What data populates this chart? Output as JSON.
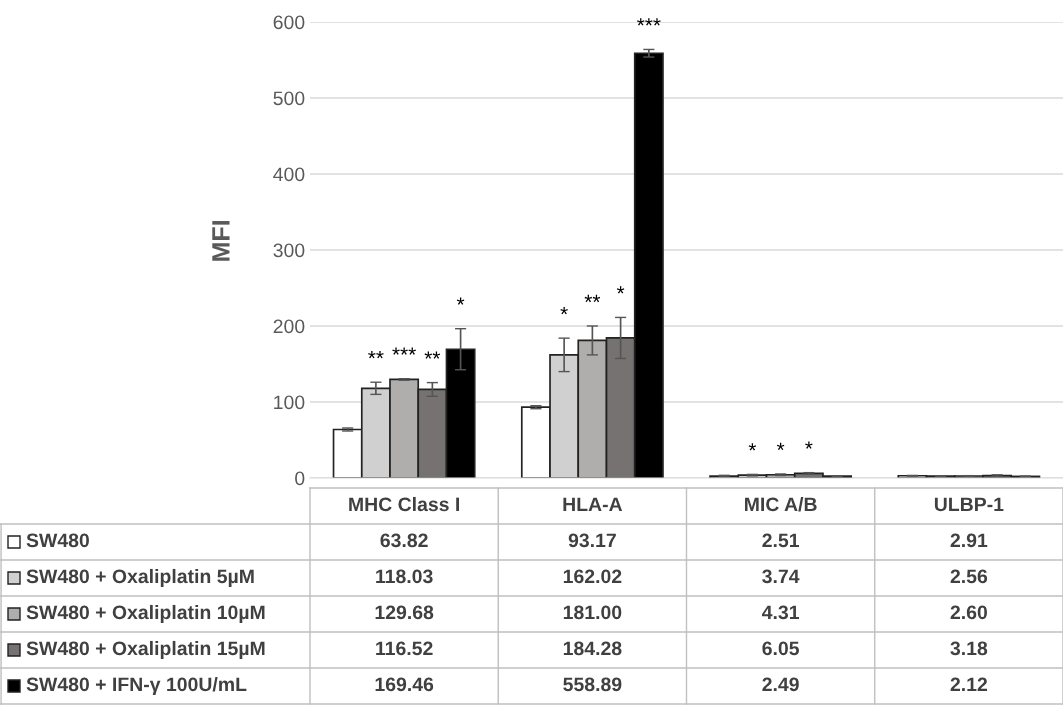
{
  "chart_data": {
    "type": "bar",
    "ylabel": "MFI",
    "categories": [
      "MHC Class I",
      "HLA-A",
      "MIC A/B",
      "ULBP-1"
    ],
    "ylim": [
      0,
      600
    ],
    "yticks": [
      0,
      100,
      200,
      300,
      400,
      500,
      600
    ],
    "grid": "y",
    "legend": "bottom",
    "tick_labels": "y",
    "series": [
      {
        "name": "SW480",
        "color": "#ffffff",
        "values": [
          63.82,
          93.17,
          2.51,
          2.91
        ],
        "errors": [
          2,
          2,
          1,
          0.5
        ],
        "value_labels": [
          "63.82",
          "93.17",
          "2.51",
          "2.91"
        ]
      },
      {
        "name": "SW480 + Oxaliplatin 5µM",
        "color": "#d0d0d0",
        "values": [
          118.03,
          162.02,
          3.74,
          2.56
        ],
        "errors": [
          8,
          22,
          1,
          0.5
        ],
        "value_labels": [
          "118.03",
          "162.02",
          "3.74",
          "2.56"
        ]
      },
      {
        "name": "SW480 + Oxaliplatin 10µM",
        "color": "#b0adad",
        "values": [
          129.68,
          181.0,
          4.31,
          2.6
        ],
        "errors": [
          1,
          19,
          1,
          0.5
        ],
        "value_labels": [
          "129.68",
          "181.00",
          "4.31",
          "2.60"
        ]
      },
      {
        "name": "SW480 + Oxaliplatin 15µM",
        "color": "#777272",
        "values": [
          116.52,
          184.28,
          6.05,
          3.18
        ],
        "errors": [
          9,
          27,
          1,
          1
        ],
        "value_labels": [
          "116.52",
          "184.28",
          "6.05",
          "3.18"
        ]
      },
      {
        "name": "SW480 + IFN-γ 100U/mL",
        "color": "#000000",
        "values": [
          169.46,
          558.89,
          2.49,
          2.12
        ],
        "errors": [
          27,
          5,
          0.5,
          0.5
        ],
        "value_labels": [
          "169.46",
          "558.89",
          "2.49",
          "2.12"
        ]
      }
    ],
    "annotations": [
      "**",
      "***",
      "**",
      "*",
      "*",
      "**",
      "*",
      "***",
      "*",
      "*",
      "*"
    ]
  }
}
